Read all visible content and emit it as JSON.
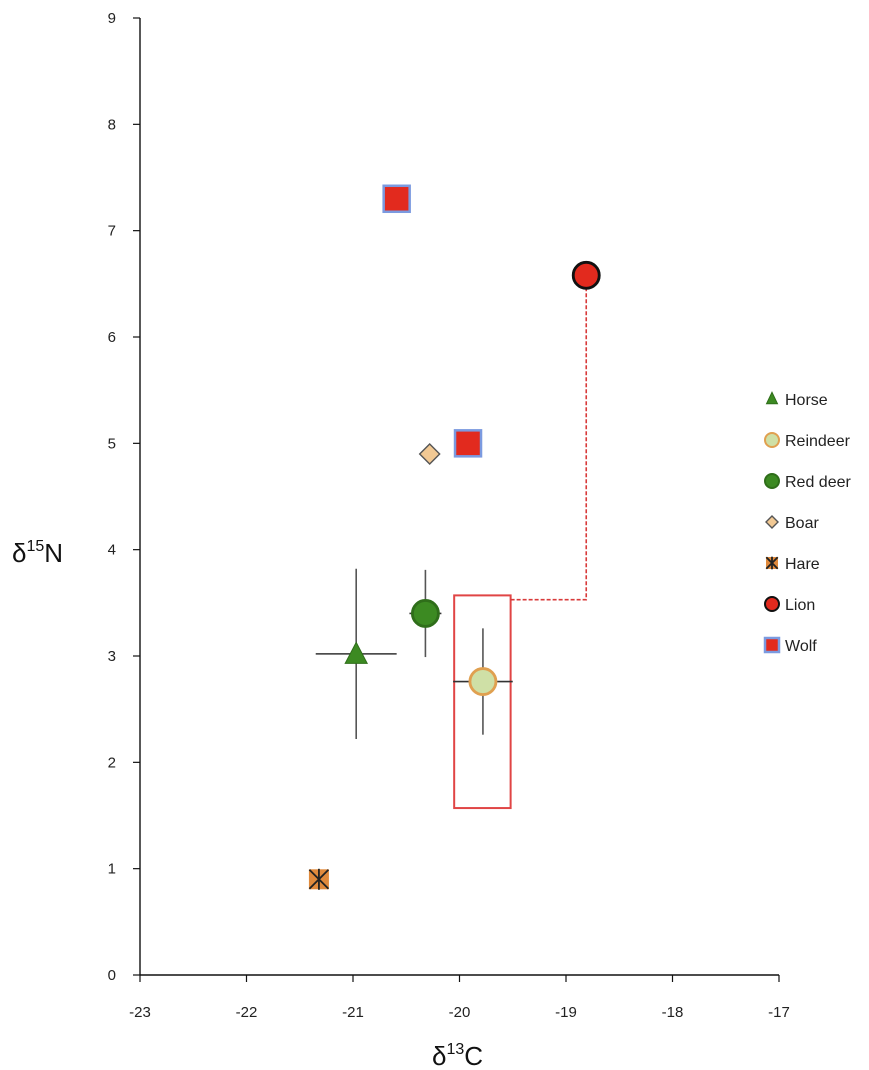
{
  "chart_data": {
    "type": "scatter",
    "xlabel": {
      "base": "δ",
      "sup": "13",
      "rest": "C"
    },
    "ylabel": {
      "base": "δ",
      "sup": "15",
      "rest": "N"
    },
    "xlim": [
      -23,
      -17
    ],
    "ylim": [
      0,
      9
    ],
    "xticks": [
      "-23",
      "-22",
      "-21",
      "-20",
      "-19",
      "-18",
      "-17"
    ],
    "yticks": [
      "0",
      "1",
      "2",
      "3",
      "4",
      "5",
      "6",
      "7",
      "8",
      "9"
    ],
    "grid": false,
    "legend_position": "right",
    "series": [
      {
        "name": "Horse",
        "marker": "triangle",
        "fill": "#3c8a22",
        "stroke": "#2f6e1a",
        "points": [
          {
            "x": -20.97,
            "y": 3.02,
            "xerr": 0.38,
            "yerr": 0.8
          }
        ]
      },
      {
        "name": "Reindeer",
        "marker": "circle",
        "fill": "#cfe0a6",
        "stroke": "#e0a050",
        "points": [
          {
            "x": -19.78,
            "y": 2.76,
            "xerr": 0.28,
            "yerr": 0.5
          }
        ]
      },
      {
        "name": "Red deer",
        "marker": "circle",
        "fill": "#3c8a22",
        "stroke": "#2f6e1a",
        "points": [
          {
            "x": -20.32,
            "y": 3.4,
            "xerr": 0.15,
            "yerr": 0.41
          }
        ]
      },
      {
        "name": "Boar",
        "marker": "diamond",
        "fill": "#f2c994",
        "stroke": "#555555",
        "points": [
          {
            "x": -20.28,
            "y": 4.9
          }
        ]
      },
      {
        "name": "Hare",
        "marker": "asterisk-square",
        "fill": "#e08a3c",
        "stroke": "#222222",
        "points": [
          {
            "x": -21.32,
            "y": 0.9
          }
        ]
      },
      {
        "name": "Lion",
        "marker": "circle",
        "fill": "#e22a1e",
        "stroke": "#111111",
        "points": [
          {
            "x": -18.81,
            "y": 6.58
          }
        ]
      },
      {
        "name": "Wolf",
        "marker": "square",
        "fill": "#e22a1e",
        "stroke": "#7b9ae0",
        "points": [
          {
            "x": -20.59,
            "y": 7.3
          },
          {
            "x": -19.92,
            "y": 5.0
          }
        ]
      }
    ],
    "annotations": {
      "highlight_box": {
        "x0": -20.05,
        "x1": -19.52,
        "y0": 1.57,
        "y1": 3.57,
        "color": "#e04545"
      },
      "connector": {
        "points": [
          {
            "x": -19.52,
            "y": 3.53
          },
          {
            "x": -18.81,
            "y": 3.53
          },
          {
            "x": -18.81,
            "y": 6.45
          }
        ],
        "color": "#d83a3a"
      }
    }
  }
}
